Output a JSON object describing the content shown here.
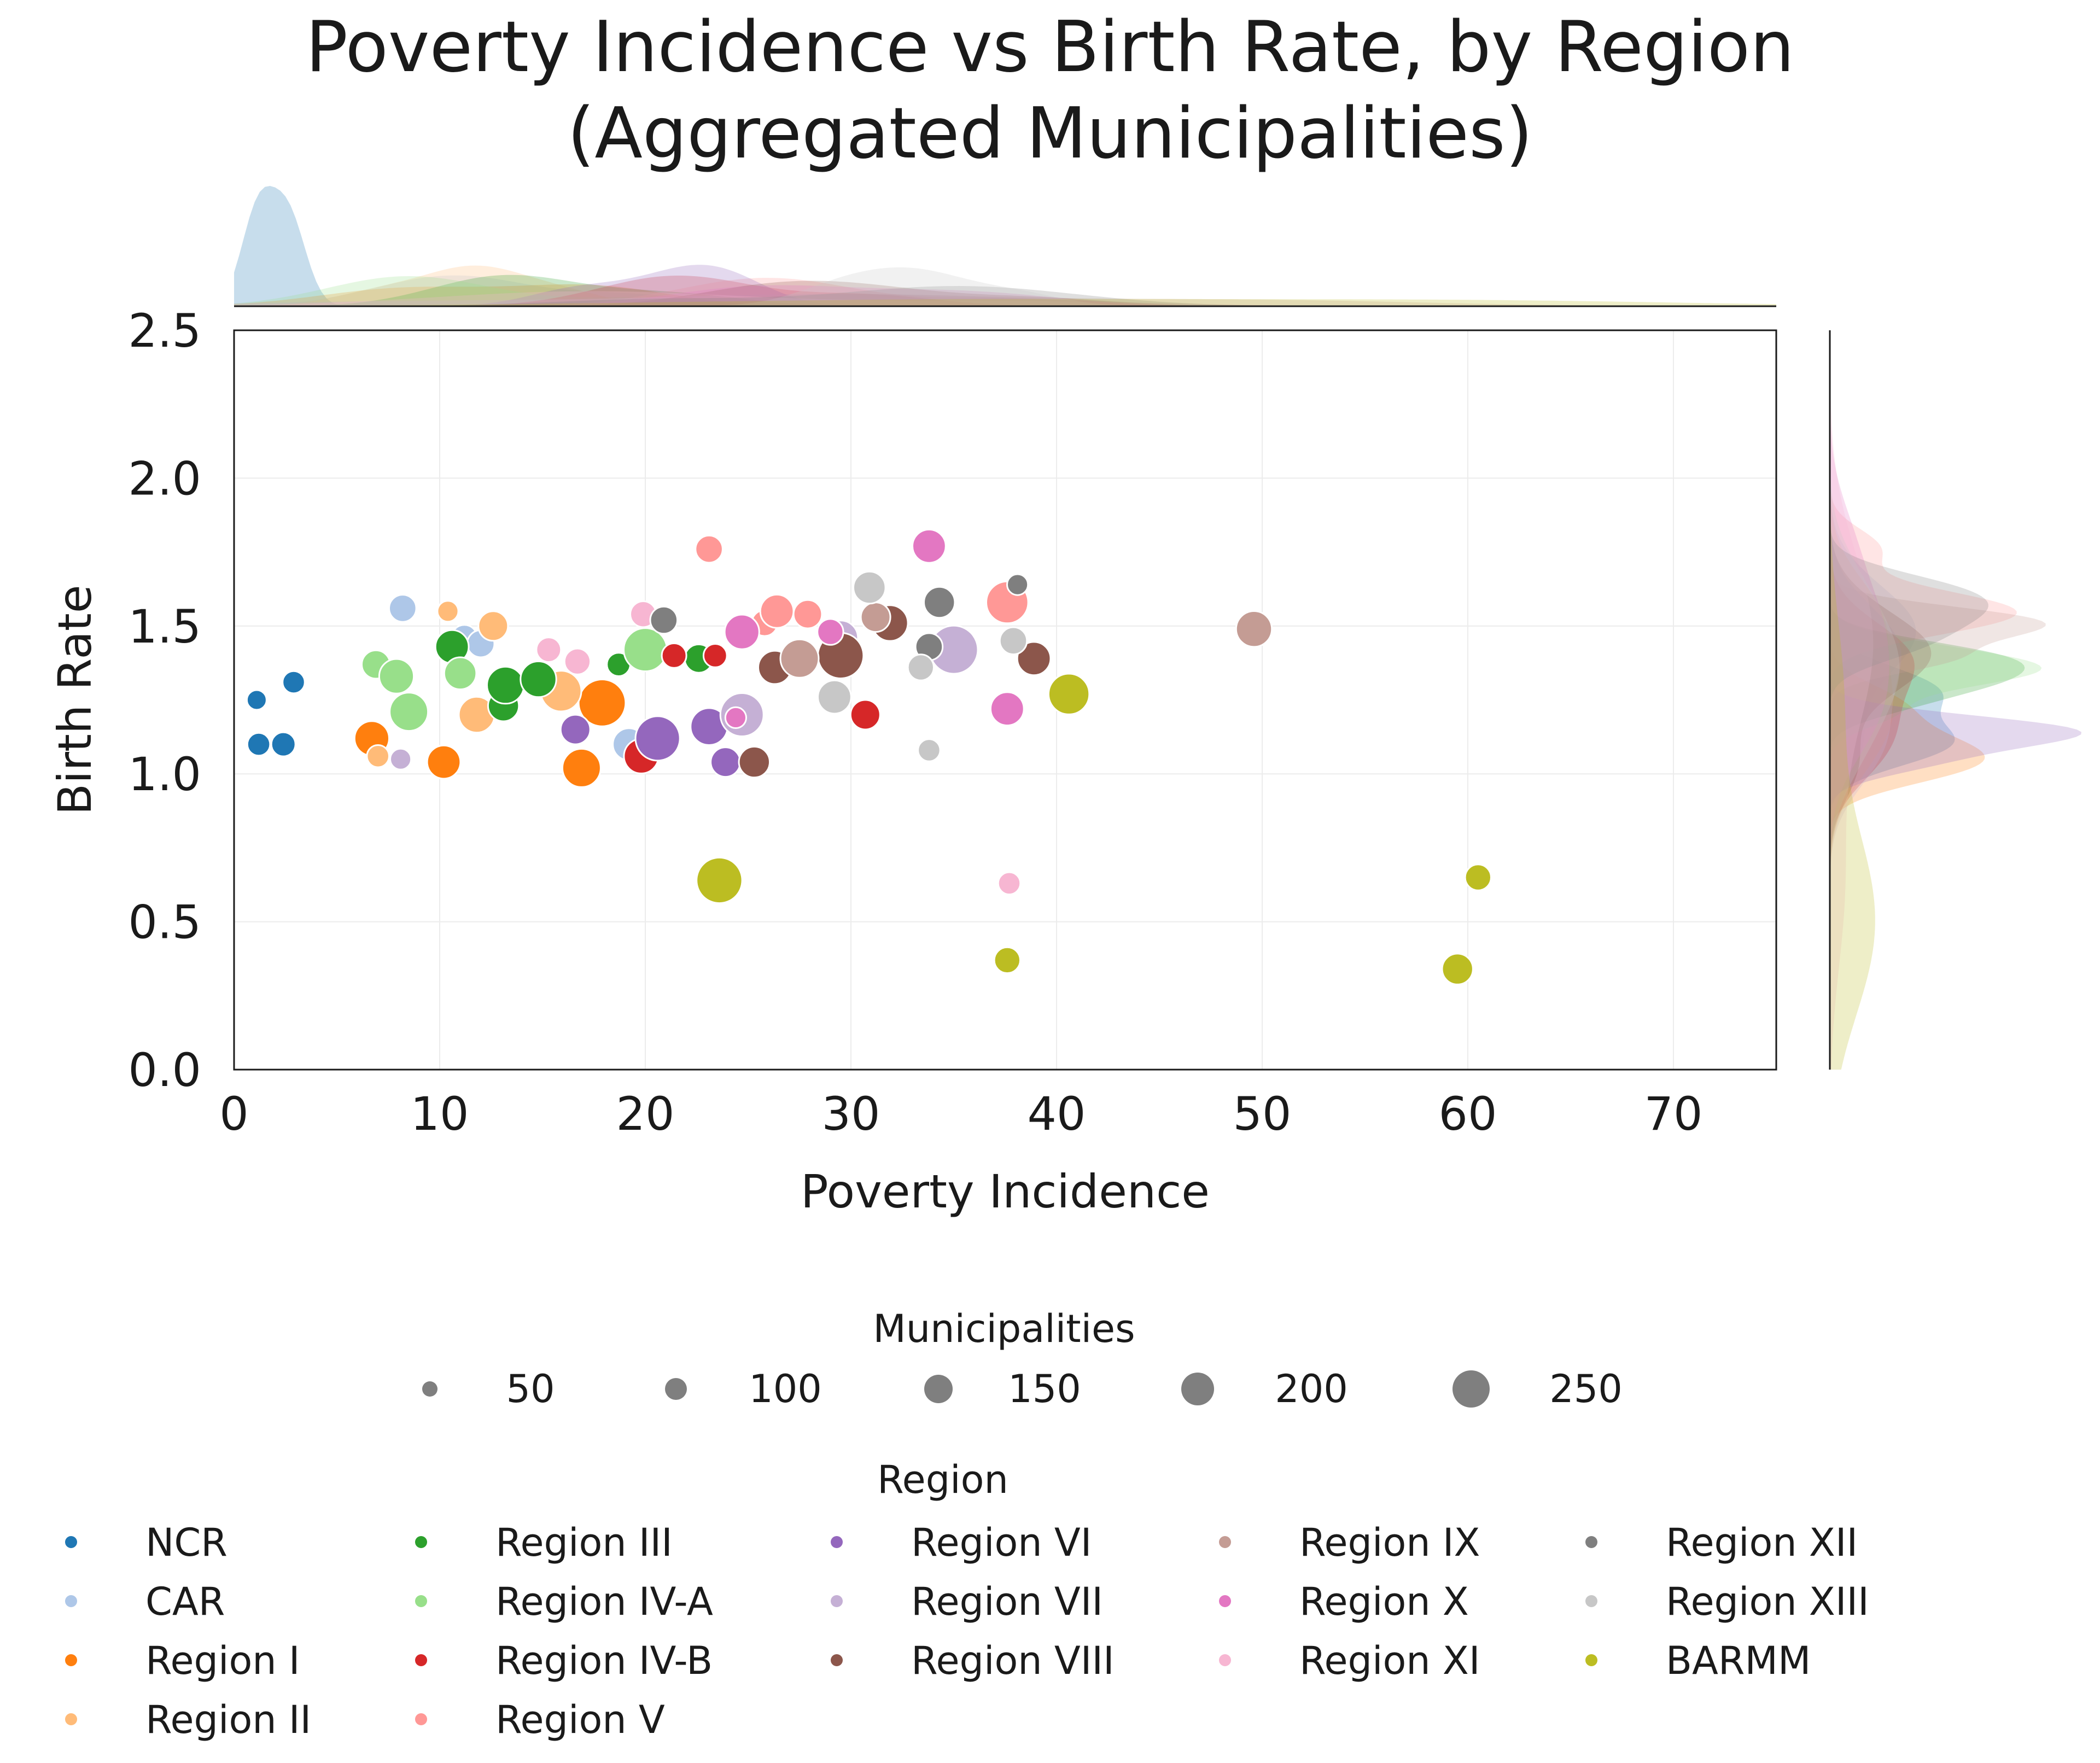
{
  "chart_data": {
    "type": "scatter",
    "title_lines": [
      "Poverty Incidence vs Birth Rate, by Region",
      "(Aggregated Municipalities)"
    ],
    "xlabel": "Poverty Incidence",
    "ylabel": "Birth Rate",
    "xlim": [
      0,
      75
    ],
    "ylim": [
      0,
      2.5
    ],
    "x_ticks": [
      0,
      10,
      20,
      30,
      40,
      50,
      60,
      70
    ],
    "y_ticks": [
      0.0,
      0.5,
      1.0,
      1.5,
      2.0,
      2.5
    ],
    "x_tick_labels": [
      "0",
      "10",
      "20",
      "30",
      "40",
      "50",
      "60",
      "70"
    ],
    "y_tick_labels": [
      "0.0",
      "0.5",
      "1.0",
      "1.5",
      "2.0",
      "2.5"
    ],
    "grid": true,
    "marginals": {
      "top": "kde of Poverty Incidence by Region",
      "right": "kde of Birth Rate by Region"
    },
    "size_legend": {
      "title": "Municipalities",
      "entries": [
        {
          "label": "50",
          "value": 50
        },
        {
          "label": "100",
          "value": 100
        },
        {
          "label": "150",
          "value": 150
        },
        {
          "label": "200",
          "value": 200
        },
        {
          "label": "250",
          "value": 250
        }
      ]
    },
    "hue_legend_title": "Region",
    "legend_placement": "bottom",
    "series": [
      {
        "name": "NCR",
        "color": "#1f77b4",
        "points": [
          [
            1.1,
            1.25,
            30
          ],
          [
            2.9,
            1.31,
            50
          ],
          [
            1.2,
            1.1,
            55
          ],
          [
            2.4,
            1.1,
            65
          ]
        ]
      },
      {
        "name": "CAR",
        "color": "#aec7e8",
        "points": [
          [
            8.2,
            1.56,
            90
          ],
          [
            11.2,
            1.46,
            80
          ],
          [
            12.0,
            1.44,
            90
          ],
          [
            19.2,
            1.1,
            130
          ]
        ]
      },
      {
        "name": "Region I",
        "color": "#ff7f0e",
        "points": [
          [
            6.7,
            1.12,
            150
          ],
          [
            10.2,
            1.04,
            140
          ],
          [
            16.9,
            1.02,
            180
          ],
          [
            17.9,
            1.24,
            250
          ]
        ]
      },
      {
        "name": "Region II",
        "color": "#ffbb78",
        "points": [
          [
            7.0,
            1.06,
            50
          ],
          [
            10.4,
            1.55,
            40
          ],
          [
            11.8,
            1.2,
            160
          ],
          [
            12.6,
            1.5,
            110
          ],
          [
            15.9,
            1.28,
            200
          ]
        ]
      },
      {
        "name": "Region III",
        "color": "#2ca02c",
        "points": [
          [
            10.6,
            1.43,
            140
          ],
          [
            13.1,
            1.23,
            120
          ],
          [
            13.2,
            1.3,
            170
          ],
          [
            14.8,
            1.32,
            160
          ],
          [
            18.7,
            1.37,
            60
          ],
          [
            22.6,
            1.39,
            100
          ]
        ]
      },
      {
        "name": "Region IV-A",
        "color": "#98df8a",
        "points": [
          [
            6.9,
            1.37,
            100
          ],
          [
            7.9,
            1.33,
            150
          ],
          [
            8.5,
            1.21,
            180
          ],
          [
            11.0,
            1.34,
            130
          ],
          [
            20.0,
            1.42,
            220
          ]
        ]
      },
      {
        "name": "Region IV-B",
        "color": "#d62728",
        "points": [
          [
            19.8,
            1.06,
            150
          ],
          [
            21.4,
            1.4,
            70
          ],
          [
            23.4,
            1.4,
            60
          ],
          [
            30.7,
            1.2,
            110
          ]
        ]
      },
      {
        "name": "Region V",
        "color": "#ff9896",
        "points": [
          [
            23.1,
            1.76,
            90
          ],
          [
            25.8,
            1.51,
            80
          ],
          [
            26.4,
            1.55,
            140
          ],
          [
            27.9,
            1.54,
            100
          ],
          [
            37.6,
            1.58,
            210
          ]
        ]
      },
      {
        "name": "Region VI",
        "color": "#9467bd",
        "points": [
          [
            16.6,
            1.15,
            110
          ],
          [
            20.6,
            1.12,
            230
          ],
          [
            23.1,
            1.16,
            170
          ],
          [
            23.9,
            1.04,
            110
          ]
        ]
      },
      {
        "name": "Region VII",
        "color": "#c5b0d5",
        "points": [
          [
            8.1,
            1.05,
            40
          ],
          [
            24.7,
            1.2,
            220
          ],
          [
            29.5,
            1.46,
            150
          ],
          [
            35.0,
            1.42,
            260
          ]
        ]
      },
      {
        "name": "Region VIII",
        "color": "#8c564b",
        "points": [
          [
            25.3,
            1.04,
            120
          ],
          [
            26.3,
            1.36,
            140
          ],
          [
            29.5,
            1.4,
            240
          ],
          [
            31.9,
            1.51,
            160
          ],
          [
            38.9,
            1.39,
            140
          ]
        ]
      },
      {
        "name": "Region IX",
        "color": "#c49c94",
        "points": [
          [
            27.5,
            1.39,
            180
          ],
          [
            31.2,
            1.53,
            110
          ],
          [
            49.6,
            1.49,
            160
          ]
        ]
      },
      {
        "name": "Region X",
        "color": "#e377c2",
        "points": [
          [
            24.4,
            1.19,
            40
          ],
          [
            24.7,
            1.48,
            150
          ],
          [
            29.0,
            1.48,
            80
          ],
          [
            33.8,
            1.77,
            140
          ],
          [
            37.6,
            1.22,
            140
          ]
        ]
      },
      {
        "name": "Region XI",
        "color": "#f7b6d2",
        "points": [
          [
            15.3,
            1.42,
            70
          ],
          [
            16.7,
            1.38,
            80
          ],
          [
            19.9,
            1.54,
            80
          ],
          [
            37.7,
            0.63,
            50
          ]
        ]
      },
      {
        "name": "Region XII",
        "color": "#7f7f7f",
        "points": [
          [
            20.9,
            1.52,
            90
          ],
          [
            33.8,
            1.43,
            90
          ],
          [
            34.3,
            1.58,
            120
          ],
          [
            38.1,
            1.64,
            40
          ]
        ]
      },
      {
        "name": "Region XIII",
        "color": "#c7c7c7",
        "points": [
          [
            29.2,
            1.26,
            140
          ],
          [
            30.9,
            1.63,
            130
          ],
          [
            33.4,
            1.36,
            80
          ],
          [
            33.8,
            1.08,
            50
          ],
          [
            37.9,
            1.45,
            90
          ]
        ]
      },
      {
        "name": "BARMM",
        "color": "#bcbd22",
        "points": [
          [
            23.6,
            0.64,
            240
          ],
          [
            37.6,
            0.37,
            80
          ],
          [
            40.6,
            1.27,
            200
          ],
          [
            59.5,
            0.34,
            120
          ],
          [
            60.5,
            0.65,
            80
          ]
        ]
      }
    ]
  }
}
